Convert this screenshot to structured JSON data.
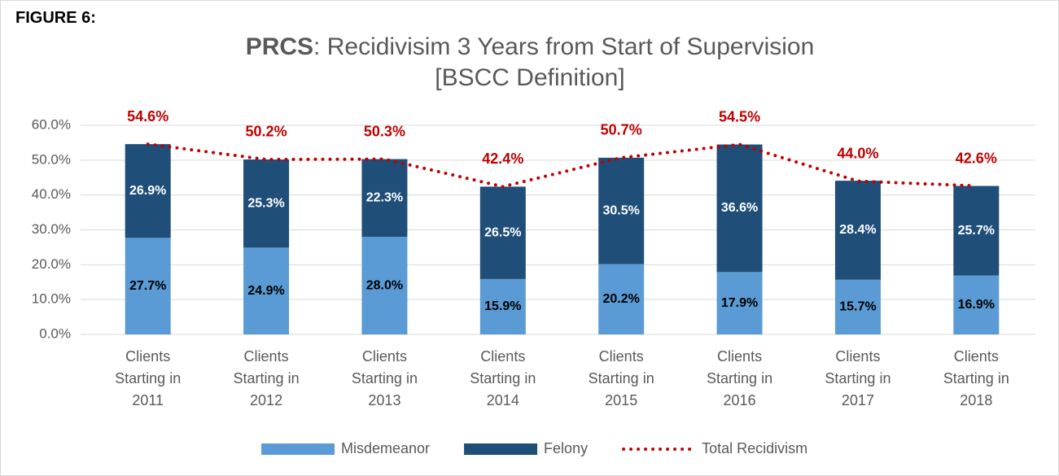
{
  "chart_data": {
    "type": "stacked_bar_line",
    "annotation": "FIGURE 6:",
    "title": {
      "emphasis": "PRCS",
      "text": ": Recidivisim 3 Years from Start of Supervision [BSCC Definition]"
    },
    "categories": [
      "Clients Starting in 2011",
      "Clients Starting in 2012",
      "Clients Starting in 2013",
      "Clients Starting in 2014",
      "Clients Starting in 2015",
      "Clients Starting in 2016",
      "Clients Starting in 2017",
      "Clients Starting in 2018"
    ],
    "series": [
      {
        "name": "Misdemeanor",
        "type": "bar",
        "color": "#5b9bd5",
        "values": [
          27.7,
          24.9,
          28,
          15.9,
          20.2,
          17.9,
          15.7,
          16.9
        ],
        "value_labels": [
          "27.7%",
          "24.9%",
          "28.0%",
          "15.9%",
          "20.2%",
          "17.9%",
          "15.7%",
          "16.9%"
        ]
      },
      {
        "name": "Felony",
        "type": "bar",
        "color": "#1f4e79",
        "values": [
          26.9,
          25.3,
          22.3,
          26.5,
          30.5,
          36.6,
          28.4,
          25.7
        ],
        "value_labels": [
          "26.9%",
          "25.3%",
          "22.3%",
          "26.5%",
          "30.5%",
          "36.6%",
          "28.4%",
          "25.7%"
        ]
      },
      {
        "name": "Total Recidivism",
        "type": "line",
        "color": "#c00000",
        "values": [
          54.6,
          50.2,
          50.3,
          42.4,
          50.7,
          54.5,
          44,
          42.6
        ],
        "value_labels": [
          "54.6%",
          "50.2%",
          "50.3%",
          "42.4%",
          "50.7%",
          "54.5%",
          "44.0%",
          "42.6%"
        ]
      }
    ],
    "ylim": [
      0,
      60
    ],
    "yticks": [
      {
        "value": 0,
        "label": "0.0%"
      },
      {
        "value": 10,
        "label": "10.0%"
      },
      {
        "value": 20,
        "label": "20.0%"
      },
      {
        "value": 30,
        "label": "30.0%"
      },
      {
        "value": 40,
        "label": "40.0%"
      },
      {
        "value": 50,
        "label": "50.0%"
      },
      {
        "value": 60,
        "label": "60.0%"
      }
    ],
    "grid": true,
    "legend": "bottom"
  }
}
